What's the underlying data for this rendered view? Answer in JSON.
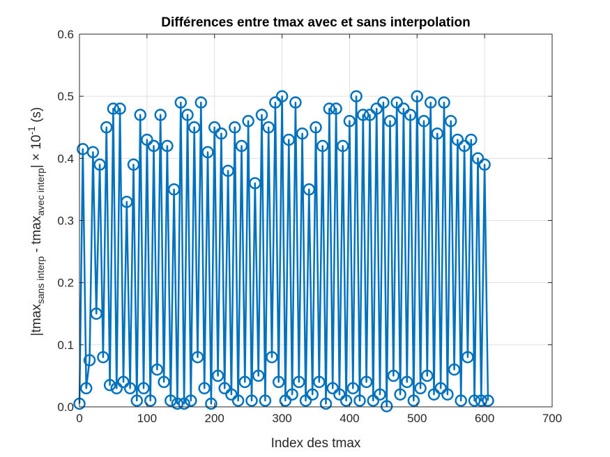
{
  "chart_data": {
    "type": "line",
    "title": "Différences entre tmax avec et sans interpolation",
    "xlabel": "Index des tmax",
    "ylabel": {
      "prefix": "|tmax",
      "sub1": "sans interp",
      "mid": " - tmax",
      "sub2": "avec interp",
      "suffix": "| × 10",
      "sup": "-1",
      "unit": " (s)"
    },
    "xlim": [
      0,
      700
    ],
    "ylim": [
      0,
      0.6
    ],
    "xticks": [
      "0",
      "100",
      "200",
      "300",
      "400",
      "500",
      "600",
      "700"
    ],
    "yticks": [
      "0.0",
      "0.1",
      "0.2",
      "0.3",
      "0.4",
      "0.5",
      "0.6"
    ],
    "grid": true,
    "series": [
      {
        "color": "#0072BD",
        "marker": "circle",
        "x": [
          0,
          5,
          10,
          15,
          20,
          25,
          30,
          35,
          40,
          45,
          50,
          55,
          60,
          65,
          70,
          75,
          80,
          85,
          90,
          95,
          100,
          105,
          110,
          115,
          120,
          125,
          130,
          135,
          140,
          145,
          150,
          155,
          160,
          165,
          170,
          175,
          180,
          185,
          190,
          195,
          200,
          205,
          210,
          215,
          220,
          225,
          230,
          235,
          240,
          245,
          250,
          255,
          260,
          265,
          270,
          275,
          280,
          285,
          290,
          295,
          300,
          305,
          310,
          315,
          320,
          325,
          330,
          335,
          340,
          345,
          350,
          355,
          360,
          365,
          370,
          375,
          380,
          385,
          390,
          395,
          400,
          405,
          410,
          415,
          420,
          425,
          430,
          435,
          440,
          445,
          450,
          455,
          460,
          465,
          470,
          475,
          480,
          485,
          490,
          495,
          500,
          505,
          510,
          515,
          520,
          525,
          530,
          535,
          540,
          545,
          550,
          555,
          560,
          565,
          570,
          575,
          580,
          585,
          590,
          595,
          600,
          605
        ],
        "y": [
          0.005,
          0.415,
          0.03,
          0.075,
          0.41,
          0.15,
          0.39,
          0.08,
          0.45,
          0.035,
          0.48,
          0.03,
          0.48,
          0.04,
          0.33,
          0.03,
          0.39,
          0.01,
          0.47,
          0.03,
          0.43,
          0.01,
          0.42,
          0.06,
          0.47,
          0.04,
          0.42,
          0.01,
          0.35,
          0.005,
          0.49,
          0.005,
          0.47,
          0.01,
          0.45,
          0.08,
          0.49,
          0.03,
          0.41,
          0.005,
          0.45,
          0.05,
          0.44,
          0.03,
          0.38,
          0.02,
          0.45,
          0.01,
          0.42,
          0.04,
          0.46,
          0.01,
          0.36,
          0.05,
          0.47,
          0.01,
          0.45,
          0.08,
          0.49,
          0.04,
          0.5,
          0.01,
          0.43,
          0.02,
          0.49,
          0.04,
          0.44,
          0.01,
          0.35,
          0.02,
          0.45,
          0.04,
          0.42,
          0.005,
          0.48,
          0.03,
          0.48,
          0.02,
          0.42,
          0.01,
          0.46,
          0.03,
          0.5,
          0.01,
          0.47,
          0.04,
          0.47,
          0.01,
          0.48,
          0.02,
          0.49,
          0.001,
          0.46,
          0.05,
          0.49,
          0.02,
          0.48,
          0.04,
          0.47,
          0.01,
          0.5,
          0.03,
          0.46,
          0.05,
          0.49,
          0.02,
          0.44,
          0.03,
          0.49,
          0.02,
          0.46,
          0.06,
          0.43,
          0.01,
          0.42,
          0.08,
          0.43,
          0.01,
          0.4,
          0.01,
          0.39,
          0.01
        ]
      }
    ]
  }
}
